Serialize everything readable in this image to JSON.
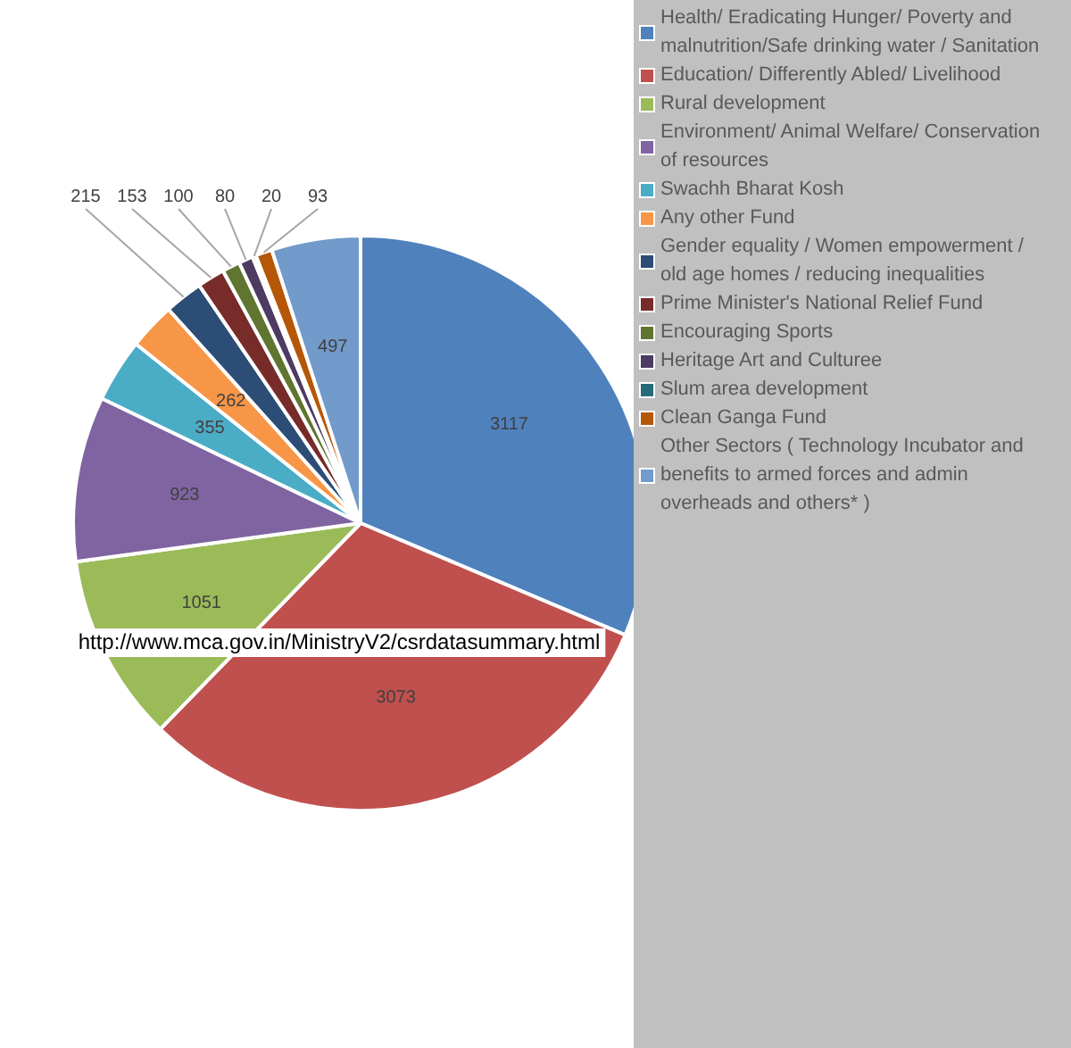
{
  "chart_data": {
    "type": "pie",
    "categories": [
      "Health/ Eradicating Hunger/ Poverty and malnutrition/Safe drinking water / Sanitation",
      "Education/ Differently Abled/ Livelihood",
      "Rural development",
      "Environment/ Animal Welfare/ Conservation of resources",
      "Swachh Bharat Kosh",
      "Any other Fund",
      "Gender equality / Women empowerment / old age homes / reducing inequalities",
      "Prime Minister's National Relief Fund",
      "Encouraging Sports",
      "Heritage Art and Culturee",
      "Slum area development",
      "Clean Ganga Fund",
      "Other Sectors ( Technology Incubator and benefits to armed forces and admin overheads and others* )"
    ],
    "values": [
      3117,
      3073,
      1051,
      923,
      355,
      262,
      215,
      153,
      100,
      80,
      20,
      93,
      497
    ],
    "colors": [
      "#4f81bd",
      "#c0504d",
      "#9bbb59",
      "#8064a2",
      "#4bacc6",
      "#f79646",
      "#2c4d75",
      "#772c2a",
      "#5f7530",
      "#4d3b62",
      "#276a7c",
      "#b65708",
      "#729aca"
    ],
    "data_labels": true,
    "legend": "right",
    "annotations": [
      "http://www.mca.gov.in/MinistryV2/csrdatasummary.html"
    ]
  }
}
